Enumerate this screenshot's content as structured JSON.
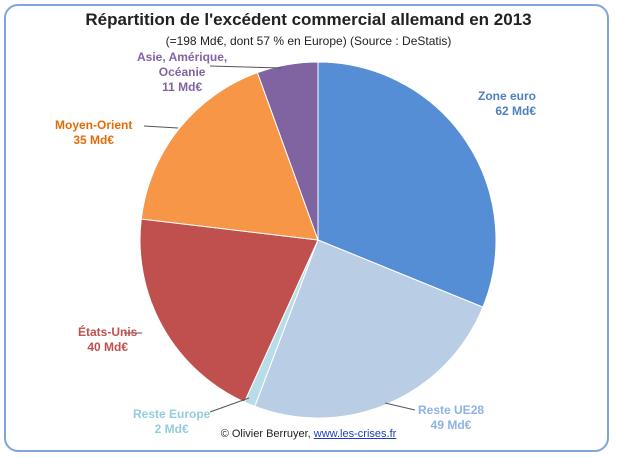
{
  "chart_data": {
    "type": "pie",
    "title": "Répartition de l'excédent commercial allemand en 2013",
    "subtitle": "(=198 Md€, dont 57 % en Europe) (Source : DeStatis)",
    "unit": "Md€",
    "slices": [
      {
        "name": "Zone euro",
        "value": 62,
        "value_label": "62 Md€",
        "color": "#558ed5"
      },
      {
        "name": "Reste UE28",
        "value": 49,
        "value_label": "49 Md€",
        "color": "#b9cde5"
      },
      {
        "name": "Reste Europe",
        "value": 2,
        "value_label": "2 Md€",
        "color": "#b7dee8"
      },
      {
        "name": "États-Unis",
        "value": 40,
        "value_label": "40 Md€",
        "color": "#c0504d"
      },
      {
        "name": "Moyen-Orient",
        "value": 35,
        "value_label": "35 Md€",
        "color": "#f79646"
      },
      {
        "name": "Asie, Amérique, Océanie",
        "value": 11,
        "value_label": "11 Md€",
        "color": "#8064a2"
      }
    ],
    "label_colors": {
      "Zone euro": "#4f81bd",
      "Reste UE28": "#8db3e2",
      "Reste Europe": "#93cddd",
      "États-Unis": "#c0504d",
      "Moyen-Orient": "#e36c09",
      "Asie, Amérique, Océanie": "#8064a2"
    }
  },
  "labels": {
    "zone_euro_name": "Zone euro",
    "zone_euro_value": "62 Md€",
    "reste_ue28_name": "Reste UE28",
    "reste_ue28_value": "49 Md€",
    "reste_europe_name": "Reste Europe",
    "reste_europe_value": "2 Md€",
    "etats_unis_name": "États-Unis",
    "etats_unis_value": "40 Md€",
    "moyen_orient_name": "Moyen-Orient",
    "moyen_orient_value": "35 Md€",
    "asie_line1": "Asie, Amérique,",
    "asie_line2": "Océanie",
    "asie_value": "11 Md€"
  },
  "credit": {
    "author": "© Olivier Berruyer,",
    "site": "www.les-crises.fr"
  }
}
